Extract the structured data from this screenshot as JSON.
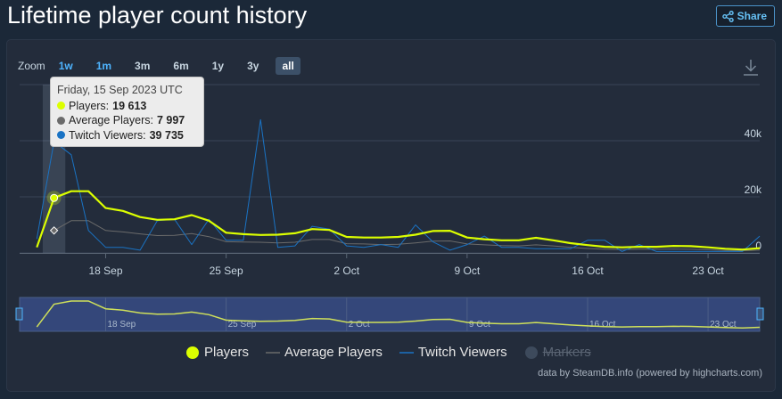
{
  "page": {
    "title": "Lifetime player count history",
    "share_label": "Share"
  },
  "zoom": {
    "label": "Zoom",
    "options": [
      "1w",
      "1m",
      "3m",
      "6m",
      "1y",
      "3y",
      "all"
    ],
    "selected": "all"
  },
  "tooltip": {
    "date": "Friday, 15 Sep 2023 UTC",
    "rows": [
      {
        "label": "Players:",
        "value": "19 613",
        "color": "#dcff00"
      },
      {
        "label": "Average Players:",
        "value": "7 997",
        "color": "#6b6b6b"
      },
      {
        "label": "Twitch Viewers:",
        "value": "39 735",
        "color": "#1a73c4"
      }
    ]
  },
  "legend": {
    "items": [
      {
        "name": "Players",
        "hidden": false
      },
      {
        "name": "Average Players",
        "hidden": false
      },
      {
        "name": "Twitch Viewers",
        "hidden": false
      },
      {
        "name": "Markers",
        "hidden": true
      }
    ]
  },
  "credits": "data by SteamDB.info (powered by highcharts.com)",
  "colors": {
    "players": "#dcff00",
    "average": "#6b6b6b",
    "twitch": "#1a73c4",
    "markers": "#3d4a5c",
    "background": "#1b2838",
    "panel": "#232c3b",
    "navigator_fill": "#34477a"
  },
  "chart_data": {
    "type": "line",
    "x_axis_type": "date",
    "xlim": [
      "2023-09-13",
      "2023-10-26"
    ],
    "ylim": [
      0,
      60000
    ],
    "y_ticks": [
      0,
      20000,
      40000
    ],
    "y_tick_labels": [
      "0",
      "20k",
      "40k"
    ],
    "x_ticks": [
      "2023-09-18",
      "2023-09-25",
      "2023-10-02",
      "2023-10-09",
      "2023-10-16",
      "2023-10-23"
    ],
    "x_tick_labels": [
      "18 Sep",
      "25 Sep",
      "2 Oct",
      "9 Oct",
      "16 Oct",
      "23 Oct"
    ],
    "highlighted_x": "2023-09-15",
    "series": [
      {
        "name": "Players",
        "color": "#dcff00",
        "points": [
          [
            "2023-09-14",
            2000
          ],
          [
            "2023-09-15",
            19613
          ],
          [
            "2023-09-16",
            22000
          ],
          [
            "2023-09-17",
            22000
          ],
          [
            "2023-09-18",
            16000
          ],
          [
            "2023-09-19",
            15000
          ],
          [
            "2023-09-20",
            12800
          ],
          [
            "2023-09-21",
            11800
          ],
          [
            "2023-09-22",
            12000
          ],
          [
            "2023-09-23",
            13500
          ],
          [
            "2023-09-24",
            11500
          ],
          [
            "2023-09-25",
            7200
          ],
          [
            "2023-09-26",
            6700
          ],
          [
            "2023-09-27",
            6400
          ],
          [
            "2023-09-28",
            6500
          ],
          [
            "2023-09-29",
            7000
          ],
          [
            "2023-09-30",
            8500
          ],
          [
            "2023-10-01",
            8200
          ],
          [
            "2023-10-02",
            5700
          ],
          [
            "2023-10-03",
            5500
          ],
          [
            "2023-10-04",
            5500
          ],
          [
            "2023-10-05",
            5700
          ],
          [
            "2023-10-06",
            6500
          ],
          [
            "2023-10-07",
            7800
          ],
          [
            "2023-10-08",
            7900
          ],
          [
            "2023-10-09",
            5500
          ],
          [
            "2023-10-10",
            4900
          ],
          [
            "2023-10-11",
            4500
          ],
          [
            "2023-10-12",
            4500
          ],
          [
            "2023-10-13",
            5400
          ],
          [
            "2023-10-14",
            4500
          ],
          [
            "2023-10-15",
            3500
          ],
          [
            "2023-10-16",
            2800
          ],
          [
            "2023-10-17",
            2200
          ],
          [
            "2023-10-18",
            2000
          ],
          [
            "2023-10-19",
            2200
          ],
          [
            "2023-10-20",
            2200
          ],
          [
            "2023-10-21",
            2500
          ],
          [
            "2023-10-22",
            2400
          ],
          [
            "2023-10-23",
            2000
          ],
          [
            "2023-10-24",
            1500
          ],
          [
            "2023-10-25",
            1200
          ],
          [
            "2023-10-26",
            1700
          ]
        ]
      },
      {
        "name": "Average Players",
        "color": "#6b6b6b",
        "points": [
          [
            "2023-09-15",
            7997
          ],
          [
            "2023-09-16",
            11500
          ],
          [
            "2023-09-17",
            11500
          ],
          [
            "2023-09-18",
            8000
          ],
          [
            "2023-09-19",
            7500
          ],
          [
            "2023-09-20",
            6800
          ],
          [
            "2023-09-21",
            6200
          ],
          [
            "2023-09-22",
            6300
          ],
          [
            "2023-09-23",
            6900
          ],
          [
            "2023-09-24",
            5800
          ],
          [
            "2023-09-25",
            4000
          ],
          [
            "2023-09-26",
            3900
          ],
          [
            "2023-09-27",
            3800
          ],
          [
            "2023-09-28",
            3600
          ],
          [
            "2023-09-29",
            3800
          ],
          [
            "2023-09-30",
            4800
          ],
          [
            "2023-10-01",
            4800
          ],
          [
            "2023-10-02",
            3300
          ],
          [
            "2023-10-03",
            3200
          ],
          [
            "2023-10-04",
            3000
          ],
          [
            "2023-10-05",
            3100
          ],
          [
            "2023-10-06",
            3600
          ],
          [
            "2023-10-07",
            4200
          ],
          [
            "2023-10-08",
            4300
          ],
          [
            "2023-10-09",
            3200
          ],
          [
            "2023-10-10",
            2900
          ],
          [
            "2023-10-11",
            2600
          ],
          [
            "2023-10-12",
            2500
          ],
          [
            "2023-10-13",
            2900
          ],
          [
            "2023-10-14",
            2500
          ],
          [
            "2023-10-15",
            2000
          ],
          [
            "2023-10-16",
            1600
          ],
          [
            "2023-10-17",
            1300
          ],
          [
            "2023-10-18",
            1200
          ],
          [
            "2023-10-19",
            1300
          ],
          [
            "2023-10-20",
            1300
          ],
          [
            "2023-10-21",
            1400
          ],
          [
            "2023-10-22",
            1300
          ],
          [
            "2023-10-23",
            1100
          ],
          [
            "2023-10-24",
            900
          ],
          [
            "2023-10-25",
            800
          ],
          [
            "2023-10-26",
            1000
          ]
        ]
      },
      {
        "name": "Twitch Viewers",
        "color": "#1a73c4",
        "points": [
          [
            "2023-09-14",
            5000
          ],
          [
            "2023-09-15",
            39735
          ],
          [
            "2023-09-16",
            35000
          ],
          [
            "2023-09-17",
            8000
          ],
          [
            "2023-09-18",
            2000
          ],
          [
            "2023-09-19",
            2000
          ],
          [
            "2023-09-20",
            1000
          ],
          [
            "2023-09-21",
            11500
          ],
          [
            "2023-09-22",
            12000
          ],
          [
            "2023-09-23",
            3000
          ],
          [
            "2023-09-24",
            12000
          ],
          [
            "2023-09-25",
            4500
          ],
          [
            "2023-09-26",
            4500
          ],
          [
            "2023-09-27",
            47500
          ],
          [
            "2023-09-28",
            2000
          ],
          [
            "2023-09-29",
            2500
          ],
          [
            "2023-09-30",
            9500
          ],
          [
            "2023-10-01",
            8500
          ],
          [
            "2023-10-02",
            2500
          ],
          [
            "2023-10-03",
            2000
          ],
          [
            "2023-10-04",
            3000
          ],
          [
            "2023-10-05",
            2000
          ],
          [
            "2023-10-06",
            10000
          ],
          [
            "2023-10-07",
            4000
          ],
          [
            "2023-10-08",
            1000
          ],
          [
            "2023-10-09",
            3000
          ],
          [
            "2023-10-10",
            6000
          ],
          [
            "2023-10-11",
            2000
          ],
          [
            "2023-10-12",
            2000
          ],
          [
            "2023-10-13",
            1500
          ],
          [
            "2023-10-14",
            1500
          ],
          [
            "2023-10-15",
            1500
          ],
          [
            "2023-10-16",
            4500
          ],
          [
            "2023-10-17",
            4500
          ],
          [
            "2023-10-18",
            500
          ],
          [
            "2023-10-19",
            3000
          ],
          [
            "2023-10-20",
            500
          ],
          [
            "2023-10-21",
            500
          ],
          [
            "2023-10-22",
            500
          ],
          [
            "2023-10-23",
            500
          ],
          [
            "2023-10-24",
            500
          ],
          [
            "2023-10-25",
            500
          ],
          [
            "2023-10-26",
            6000
          ]
        ]
      }
    ]
  }
}
